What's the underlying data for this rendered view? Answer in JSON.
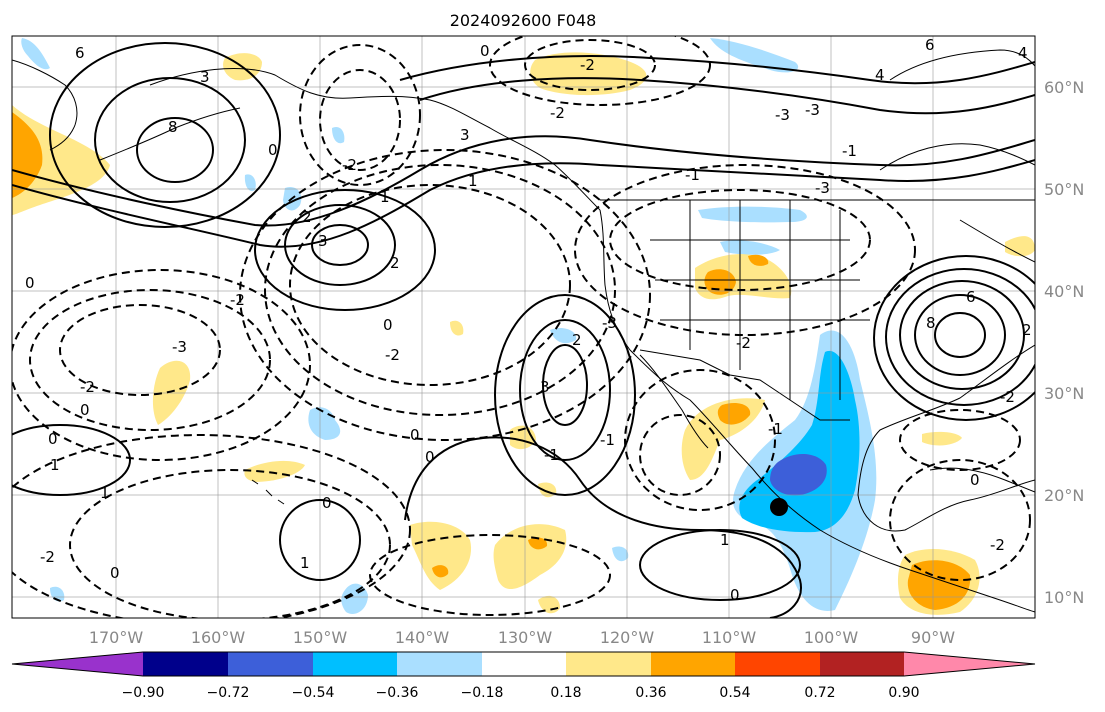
{
  "title": "2024092600 F048",
  "lat_labels": [
    "60°N",
    "50°N",
    "40°N",
    "30°N",
    "20°N",
    "10°N"
  ],
  "lon_labels": [
    "170°W",
    "160°W",
    "150°W",
    "140°W",
    "130°W",
    "120°W",
    "110°W",
    "100°W",
    "90°W"
  ],
  "colorbar": {
    "ticks": [
      "−0.90",
      "−0.72",
      "−0.54",
      "−0.36",
      "−0.18",
      "0.18",
      "0.36",
      "0.54",
      "0.72",
      "0.90"
    ],
    "colors": [
      "#9932cc",
      "#00008b",
      "#3d5fd9",
      "#00bfff",
      "#aadfff",
      "#ffffff",
      "#ffe88a",
      "#ffa500",
      "#ff4500",
      "#b22222",
      "#ff88aa"
    ]
  },
  "fill_colors": {
    "light_yellow": "#ffe88a",
    "orange": "#ffa500",
    "light_blue": "#aadfff",
    "deep_sky_blue": "#00bfff",
    "royal_blue": "#3d5fd9"
  },
  "contour_labels": [
    "6",
    "3",
    "8",
    "0",
    "-2",
    "2",
    "-3",
    "1",
    "3",
    "2",
    "-2",
    "0",
    "3",
    "-3",
    "-2",
    "0",
    "2",
    "0",
    "-1",
    "1",
    "3",
    "-3",
    "-1",
    "-2",
    "-2",
    "1",
    "0",
    "1",
    "0",
    "6",
    "8",
    "4",
    "-3",
    "-1",
    "6",
    "4",
    "0",
    "-2",
    "-1",
    "0",
    "1",
    "-2",
    "0",
    "-2",
    "0",
    "1",
    "-1",
    "0",
    "0",
    "2",
    "-2",
    "-3",
    "-2"
  ],
  "storm_marker": {
    "lat": 18.9,
    "lon": -105.1
  }
}
